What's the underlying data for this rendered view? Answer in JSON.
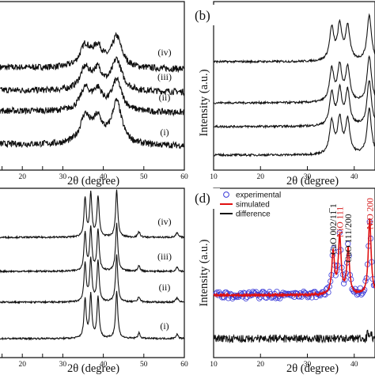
{
  "chart_data": [
    {
      "id": "a",
      "type": "line",
      "panel_label": "",
      "xlabel": "2θ (degree)",
      "ylabel": "",
      "xlim": [
        10,
        60
      ],
      "x_ticks": [
        "",
        "20",
        "",
        "30",
        "40",
        "50",
        "60"
      ],
      "x_tick_values": [
        15,
        20,
        25,
        30,
        40,
        50,
        60
      ],
      "series": [
        {
          "name": "(iv)",
          "peaks": [
            [
              35.5,
              0.55
            ],
            [
              38.6,
              0.5
            ],
            [
              43.3,
              0.8
            ]
          ],
          "offset": 3
        },
        {
          "name": "(iii)",
          "peaks": [
            [
              35.5,
              0.55
            ],
            [
              38.6,
              0.5
            ],
            [
              43.3,
              0.8
            ]
          ],
          "offset": 2
        },
        {
          "name": "(ii)",
          "peaks": [
            [
              35.5,
              0.55
            ],
            [
              38.6,
              0.5
            ],
            [
              43.3,
              0.8
            ]
          ],
          "offset": 1
        },
        {
          "name": "(i)",
          "peaks": [
            [
              35.5,
              0.7
            ],
            [
              38.6,
              0.6
            ],
            [
              43.3,
              1.1
            ]
          ],
          "offset": 0
        }
      ]
    },
    {
      "id": "b",
      "type": "line",
      "panel_label": "(b)",
      "xlabel": "2θ (degree)",
      "ylabel": "Intensity (a.u.)",
      "xlim": [
        10,
        50
      ],
      "x_ticks": [
        "10",
        "20",
        "30",
        "40"
      ],
      "x_tick_values": [
        10,
        20,
        30,
        40
      ],
      "series": [
        {
          "name": "",
          "peaks": [
            [
              35.2,
              0.7
            ],
            [
              36.9,
              0.75
            ],
            [
              38.6,
              0.75
            ],
            [
              43.2,
              1.0
            ]
          ],
          "offset": 3
        },
        {
          "name": "",
          "peaks": [
            [
              35.2,
              0.7
            ],
            [
              36.9,
              0.75
            ],
            [
              38.6,
              0.75
            ],
            [
              43.2,
              1.0
            ]
          ],
          "offset": 2
        },
        {
          "name": "",
          "peaks": [
            [
              35.2,
              0.7
            ],
            [
              36.9,
              0.75
            ],
            [
              38.6,
              0.75
            ],
            [
              43.2,
              1.0
            ]
          ],
          "offset": 1
        },
        {
          "name": "",
          "peaks": [
            [
              35.2,
              0.7
            ],
            [
              36.9,
              0.75
            ],
            [
              38.6,
              0.75
            ],
            [
              43.2,
              1.0
            ]
          ],
          "offset": 0
        }
      ]
    },
    {
      "id": "c",
      "type": "line",
      "panel_label": "",
      "xlabel": "2θ (degree)",
      "ylabel": "",
      "xlim": [
        10,
        60
      ],
      "x_ticks": [
        "",
        "20",
        "",
        "30",
        "40",
        "50",
        "60"
      ],
      "x_tick_values": [
        15,
        20,
        25,
        30,
        40,
        50,
        60
      ],
      "series": [
        {
          "name": "(iv)",
          "peaks": [
            [
              35.5,
              0.85
            ],
            [
              36.9,
              0.95
            ],
            [
              38.7,
              0.9
            ],
            [
              43.3,
              1.05
            ],
            [
              48.8,
              0.12
            ],
            [
              58.2,
              0.1
            ]
          ],
          "offset": 3
        },
        {
          "name": "(iii)",
          "peaks": [
            [
              35.5,
              0.85
            ],
            [
              36.9,
              0.95
            ],
            [
              38.7,
              0.9
            ],
            [
              43.3,
              1.05
            ],
            [
              48.8,
              0.12
            ],
            [
              58.2,
              0.1
            ]
          ],
          "offset": 2
        },
        {
          "name": "(ii)",
          "peaks": [
            [
              35.5,
              0.85
            ],
            [
              36.9,
              0.95
            ],
            [
              38.7,
              0.9
            ],
            [
              43.3,
              1.05
            ],
            [
              48.8,
              0.12
            ],
            [
              58.2,
              0.1
            ]
          ],
          "offset": 1
        },
        {
          "name": "(i)",
          "peaks": [
            [
              35.5,
              0.85
            ],
            [
              36.9,
              0.95
            ],
            [
              38.7,
              0.9
            ],
            [
              43.3,
              1.05
            ],
            [
              48.8,
              0.12
            ],
            [
              58.2,
              0.1
            ]
          ],
          "offset": 0
        }
      ]
    },
    {
      "id": "d",
      "type": "scatter",
      "panel_label": "(d)",
      "xlabel": "2θ (degree)",
      "ylabel": "Intensity (a.u.)",
      "xlim": [
        10,
        50
      ],
      "x_ticks": [
        "10",
        "20",
        "30",
        "40"
      ],
      "x_tick_values": [
        10,
        20,
        30,
        40
      ],
      "legend": [
        "experimental",
        "simulated",
        "difference"
      ],
      "peaks": [
        [
          35.5,
          0.55
        ],
        [
          36.9,
          0.75
        ],
        [
          38.7,
          0.6
        ],
        [
          43.3,
          1.0
        ]
      ],
      "annotations": [
        {
          "text": "CuO 002/11̅ 1",
          "x": 35.5,
          "color": "#111111"
        },
        {
          "text": "NiO 111",
          "x": 36.9,
          "color": "#d62020"
        },
        {
          "text": "CuO 111/200",
          "x": 38.7,
          "color": "#111111"
        },
        {
          "text": "NiO 200",
          "x": 43.3,
          "color": "#d62020"
        }
      ]
    }
  ],
  "colors": {
    "line": "#111111",
    "experimental": "#3a3ad8",
    "simulated": "#e01010",
    "nio": "#d62020"
  }
}
